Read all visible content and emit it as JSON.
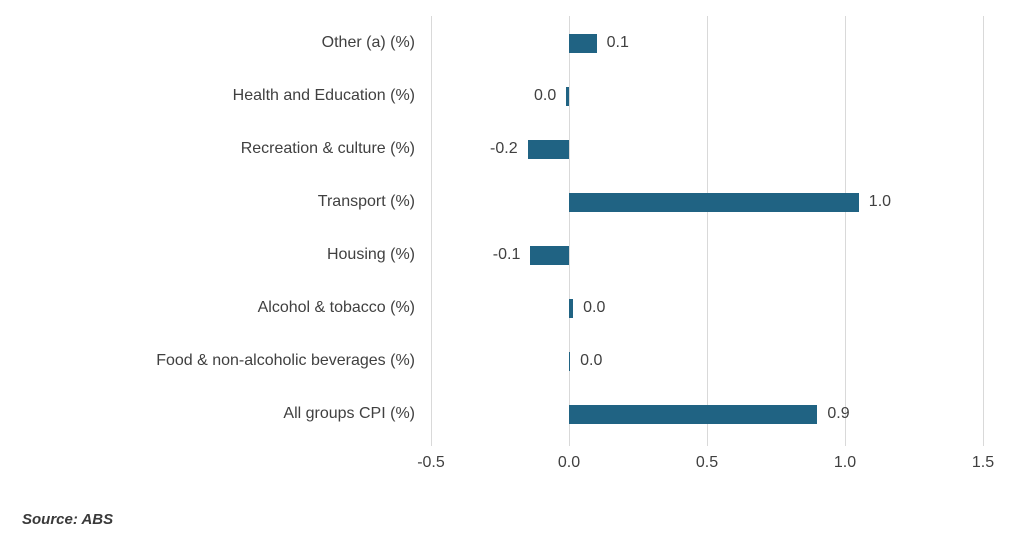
{
  "chart_data": {
    "type": "bar",
    "orientation": "horizontal",
    "title": "",
    "xlabel": "",
    "ylabel": "",
    "categories": [
      "Other (a) (%)",
      "Health and Education (%)",
      "Recreation & culture (%)",
      "Transport (%)",
      "Housing (%)",
      "Alcohol & tobacco (%)",
      "Food & non-alcoholic beverages (%)",
      "All groups CPI (%)"
    ],
    "values": [
      0.1,
      0.0,
      -0.2,
      1.0,
      -0.1,
      0.0,
      0.0,
      0.9
    ],
    "data_labels": [
      "0.1",
      "0.0",
      "-0.2",
      "1.0",
      "-0.1",
      "0.0",
      "0.0",
      "0.9"
    ],
    "plot_values": [
      0.1,
      -0.01,
      -0.15,
      1.05,
      -0.14,
      0.015,
      0.004,
      0.9
    ],
    "xlim": [
      -0.5,
      1.5
    ],
    "x_ticks": [
      "-0.5",
      "0.0",
      "0.5",
      "1.0",
      "1.5"
    ],
    "x_tick_values": [
      -0.5,
      0.0,
      0.5,
      1.0,
      1.5
    ],
    "grid": "vertical-gridlines-on",
    "legend_position": "none",
    "bar_color": "#206383",
    "gridline_color": "#d9d9d9",
    "text_color": "#404040"
  },
  "footer": {
    "source_label": "Source: ABS"
  }
}
